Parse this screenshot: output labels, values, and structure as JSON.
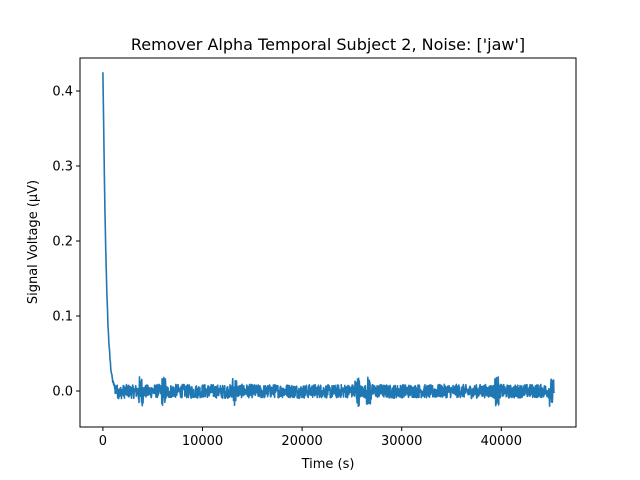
{
  "chart_data": {
    "type": "line",
    "title": "Remover Alpha Temporal Subject 2, Noise: ['jaw']",
    "xlabel": "Time (s)",
    "ylabel": "Signal Voltage (μV)",
    "xlim": [
      -2300,
      47500
    ],
    "ylim": [
      -0.048,
      0.444
    ],
    "x_ticks": [
      0,
      10000,
      20000,
      30000,
      40000
    ],
    "x_tick_labels": [
      "0",
      "10000",
      "20000",
      "30000",
      "40000"
    ],
    "y_ticks": [
      0.0,
      0.1,
      0.2,
      0.3,
      0.4
    ],
    "y_tick_labels": [
      "0.0",
      "0.1",
      "0.2",
      "0.3",
      "0.4"
    ],
    "grid": false,
    "series": [
      {
        "color": "#1f77b4",
        "x": [
          0,
          100,
          200,
          300,
          400,
          500,
          600,
          700,
          800,
          900,
          1000,
          1200,
          1400,
          1700,
          2000,
          2500,
          3000,
          3500,
          3800,
          4000,
          4500,
          5000,
          5500,
          6000,
          6200,
          6500,
          7000,
          8000,
          9000,
          10000,
          11000,
          12000,
          13000,
          14000,
          15000,
          16000,
          17000,
          18000,
          19000,
          20000,
          21000,
          22000,
          23000,
          24000,
          25000,
          25500,
          26000,
          26700,
          27000,
          28000,
          29000,
          30000,
          31000,
          32000,
          33000,
          34000,
          35000,
          36000,
          37000,
          38000,
          39000,
          39500,
          40000,
          41000,
          42000,
          43000,
          44000,
          44700,
          45000,
          45300
        ],
        "y": [
          0.424,
          0.33,
          0.24,
          0.18,
          0.13,
          0.09,
          0.065,
          0.045,
          0.03,
          0.02,
          0.012,
          0.005,
          0.0,
          -0.002,
          -0.001,
          0.0,
          -0.001,
          0.0,
          0.0,
          0.0,
          -0.001,
          0.0,
          0.0,
          0.0,
          0.0,
          -0.001,
          0.0,
          0.0,
          -0.001,
          0.0,
          0.0,
          -0.001,
          0.0,
          0.0,
          0.0,
          -0.001,
          0.0,
          0.0,
          0.0,
          -0.001,
          0.0,
          0.0,
          -0.001,
          0.0,
          0.0,
          0.0,
          -0.001,
          0.0,
          0.0,
          0.0,
          -0.001,
          0.0,
          0.0,
          0.0,
          -0.001,
          0.0,
          0.0,
          0.0,
          -0.001,
          0.0,
          0.0,
          0.0,
          0.0,
          -0.001,
          0.0,
          0.0,
          0.0,
          0.0,
          -0.002,
          -0.005
        ]
      }
    ]
  }
}
